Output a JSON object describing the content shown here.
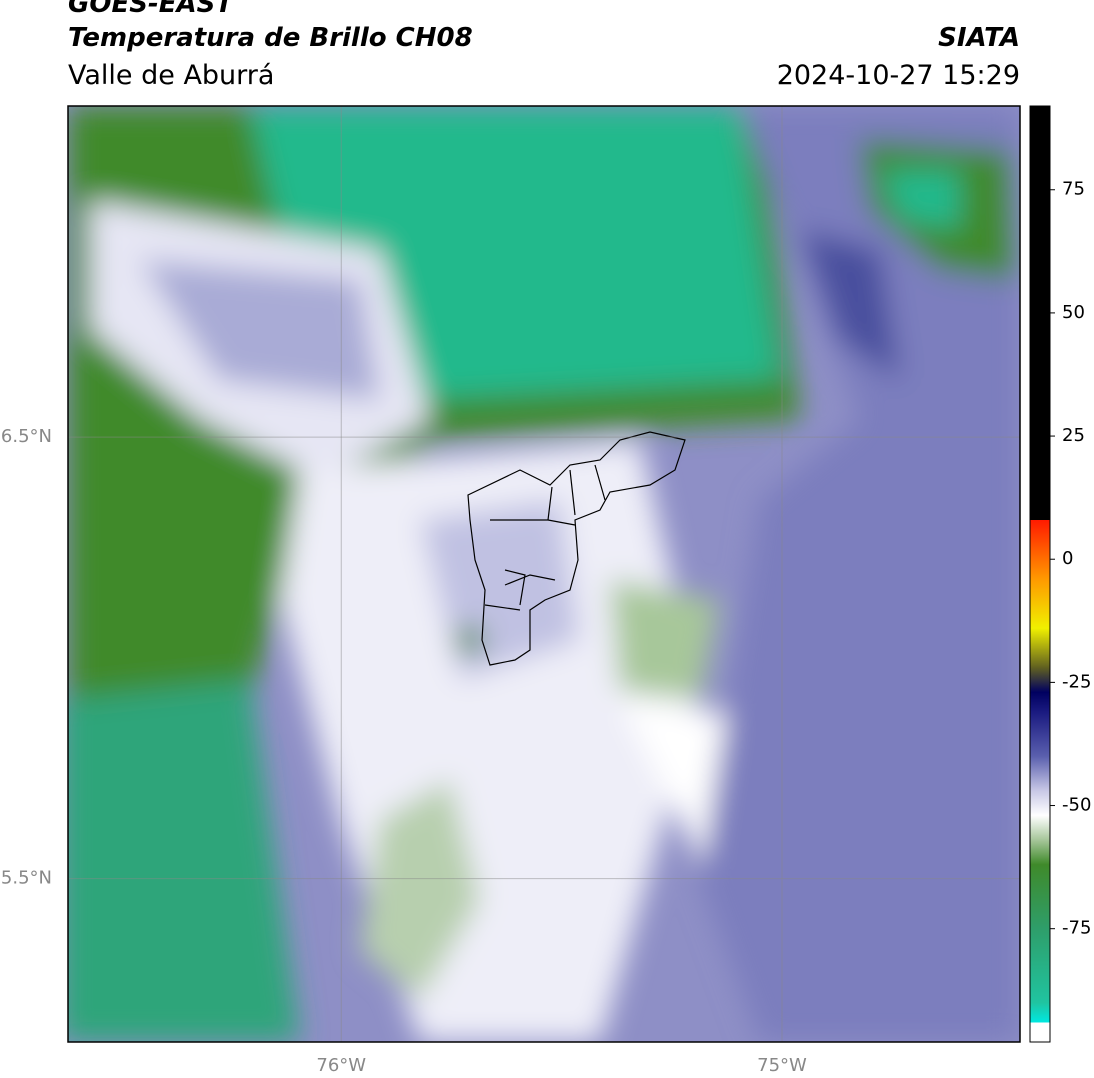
{
  "header": {
    "title": "GOES-EAST",
    "subtitle": "Temperatura de Brillo CH08",
    "region": "Valle de Aburrá",
    "source": "SIATA",
    "timestamp": "2024-10-27 15:29"
  },
  "map": {
    "xlim": [
      -76.62,
      -74.46
    ],
    "ylim": [
      5.13,
      7.25
    ],
    "xticks": [
      {
        "value": -76,
        "label": "76°W"
      },
      {
        "value": -75,
        "label": "75°W"
      }
    ],
    "yticks": [
      {
        "value": 6.5,
        "label": "6.5°N"
      },
      {
        "value": 5.5,
        "label": "5.5°N"
      }
    ],
    "grid": true
  },
  "colorbar": {
    "clim": [
      -98,
      92
    ],
    "ticks": [
      75,
      50,
      25,
      0,
      -25,
      -50,
      -75
    ],
    "stops": [
      [
        -98,
        "#ffffff"
      ],
      [
        -94,
        "#ffffff"
      ],
      [
        -94,
        "#00e8e0"
      ],
      [
        -90,
        "#20c4a0"
      ],
      [
        -75,
        "#2e9e6a"
      ],
      [
        -62,
        "#3f8a2a"
      ],
      [
        -57,
        "#a6c69a"
      ],
      [
        -52,
        "#ffffff"
      ],
      [
        -47,
        "#c8c8e6"
      ],
      [
        -40,
        "#5a5fae"
      ],
      [
        -31,
        "#1a1a80"
      ],
      [
        -27,
        "#000060"
      ],
      [
        -22,
        "#606020"
      ],
      [
        -14,
        "#f0f000"
      ],
      [
        -4,
        "#ff9900"
      ],
      [
        8,
        "#ff1a00"
      ],
      [
        8,
        "#000000"
      ],
      [
        92,
        "#000000"
      ]
    ]
  }
}
